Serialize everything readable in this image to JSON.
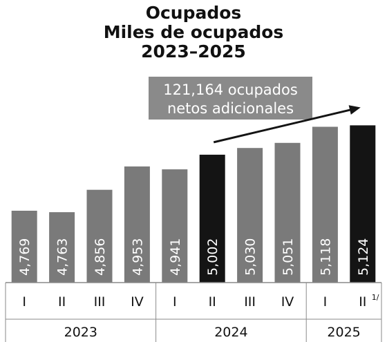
{
  "chart_data": {
    "type": "bar",
    "title": [
      "Ocupados",
      "Miles de ocupados",
      "2023–2025"
    ],
    "unit": "Miles de ocupados",
    "bars": [
      {
        "quarter": "I",
        "year": "2023",
        "value": 4769,
        "label": "4,769",
        "highlight": false
      },
      {
        "quarter": "II",
        "year": "2023",
        "value": 4763,
        "label": "4,763",
        "highlight": false
      },
      {
        "quarter": "III",
        "year": "2023",
        "value": 4856,
        "label": "4,856",
        "highlight": false
      },
      {
        "quarter": "IV",
        "year": "2023",
        "value": 4953,
        "label": "4,953",
        "highlight": false
      },
      {
        "quarter": "I",
        "year": "2024",
        "value": 4941,
        "label": "4,941",
        "highlight": false
      },
      {
        "quarter": "II",
        "year": "2024",
        "value": 5002,
        "label": "5,002",
        "highlight": true
      },
      {
        "quarter": "III",
        "year": "2024",
        "value": 5030,
        "label": "5,030",
        "highlight": false
      },
      {
        "quarter": "IV",
        "year": "2024",
        "value": 5051,
        "label": "5,051",
        "highlight": false
      },
      {
        "quarter": "I",
        "year": "2025",
        "value": 5118,
        "label": "5,118",
        "highlight": false
      },
      {
        "quarter": "II",
        "year": "2025",
        "value": 5124,
        "label": "5,124",
        "highlight": true,
        "footnote": "1/"
      }
    ],
    "years": [
      "2023",
      "2024",
      "2025"
    ],
    "annotation": {
      "lines": [
        "121,164 ocupados",
        "netos adicionales"
      ],
      "from_bar": 5,
      "to_bar": 9
    },
    "ylim": [
      4470,
      5200
    ],
    "grid": false,
    "legend": "none",
    "colors": {
      "bar": "#7a7a7a",
      "highlight": "#141414",
      "annotation_box": "#8a8a8a",
      "axis": "#8a8a8a",
      "text": "#111111"
    }
  }
}
